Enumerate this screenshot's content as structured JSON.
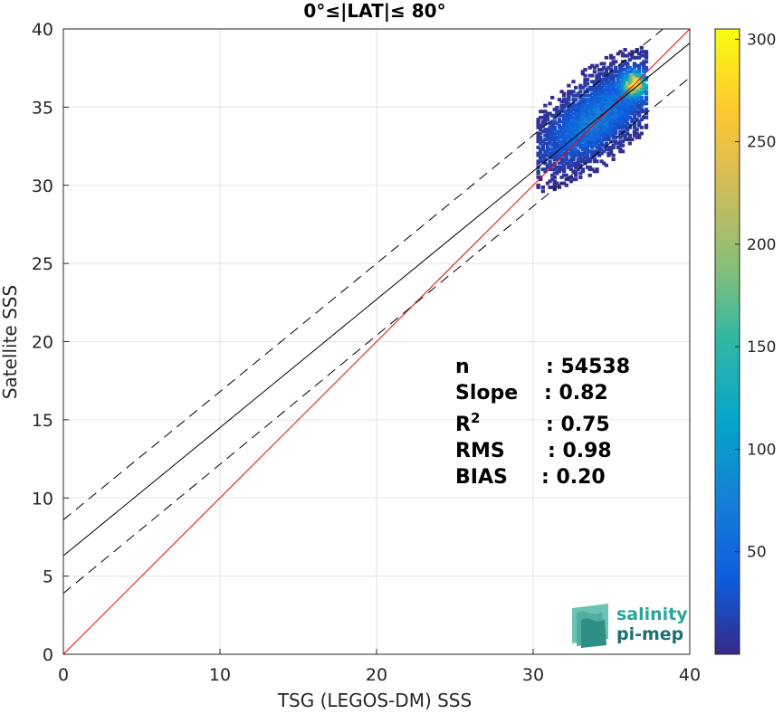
{
  "chart_data": {
    "type": "heatmap",
    "title": "0°≤|LAT|≤ 80°",
    "xlabel": "TSG (LEGOS-DM) SSS",
    "ylabel": "Satellite SSS",
    "xlim": [
      0,
      40
    ],
    "ylim": [
      0,
      40
    ],
    "x_ticks": [
      "0",
      "10",
      "20",
      "30",
      "40"
    ],
    "y_ticks": [
      "0",
      "5",
      "10",
      "15",
      "20",
      "25",
      "30",
      "35",
      "40"
    ],
    "grid": true,
    "colorbar": {
      "min": 0,
      "max": 305,
      "ticks": [
        "50",
        "100",
        "150",
        "200",
        "250",
        "300"
      ],
      "colormap": "parula"
    },
    "density_cloud": {
      "x_range": [
        30.2,
        37.2
      ],
      "y_range": [
        28.2,
        38.8
      ],
      "peak_x": 36.4,
      "peak_y": 36.5,
      "peak_count": 300
    },
    "lines": [
      {
        "kind": "one-to-one",
        "color": "#ff0000",
        "points": [
          [
            0,
            0
          ],
          [
            40,
            40
          ]
        ]
      },
      {
        "kind": "regression",
        "color": "#000000",
        "points": [
          [
            0,
            6.3
          ],
          [
            40,
            39.1
          ]
        ]
      },
      {
        "kind": "regression-upper",
        "color": "#000000",
        "dash": true,
        "points": [
          [
            0,
            8.6
          ],
          [
            40,
            41.4
          ]
        ]
      },
      {
        "kind": "regression-lower",
        "color": "#000000",
        "dash": true,
        "points": [
          [
            0,
            3.9
          ],
          [
            40,
            36.9
          ]
        ]
      }
    ],
    "stats": [
      {
        "label": "n",
        "value": ": 54538"
      },
      {
        "label": "Slope",
        "value": ": 0.82"
      },
      {
        "label": "R",
        "sup": "2",
        "value": ": 0.75"
      },
      {
        "label": "RMS",
        "value": ": 0.98"
      },
      {
        "label": "BIAS",
        "value": ": 0.20"
      }
    ]
  },
  "logo": {
    "line1": "salinity",
    "line2": "pi-mep"
  }
}
